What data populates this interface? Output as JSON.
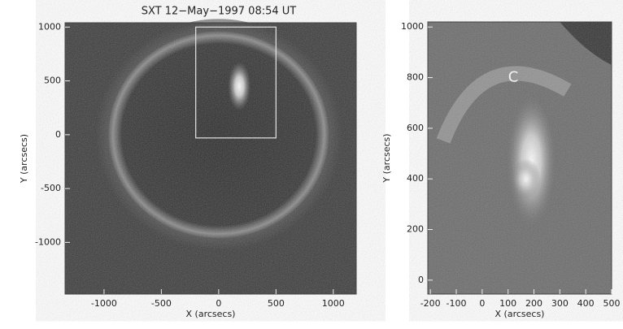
{
  "panels": [
    {
      "title": "SXT 12−May−1997 08:54 UT",
      "xlabel": "X (arcsecs)",
      "ylabel": "Y (arcsecs)",
      "xlim": [
        -1340,
        1200
      ],
      "ylim": [
        -1480,
        1040
      ],
      "xticks": [
        -1000,
        -500,
        0,
        500,
        1000
      ],
      "yticks": [
        -1000,
        -500,
        0,
        500,
        1000
      ]
    },
    {
      "xlabel": "X (arcsecs)",
      "ylabel": "Y (arcsecs)",
      "annotation": "C",
      "xlim": [
        -210,
        500
      ],
      "ylim": [
        -55,
        1020
      ],
      "xticks": [
        -200,
        -100,
        0,
        100,
        200,
        300,
        400,
        500
      ],
      "yticks": [
        0,
        200,
        400,
        600,
        800,
        1000
      ]
    }
  ]
}
